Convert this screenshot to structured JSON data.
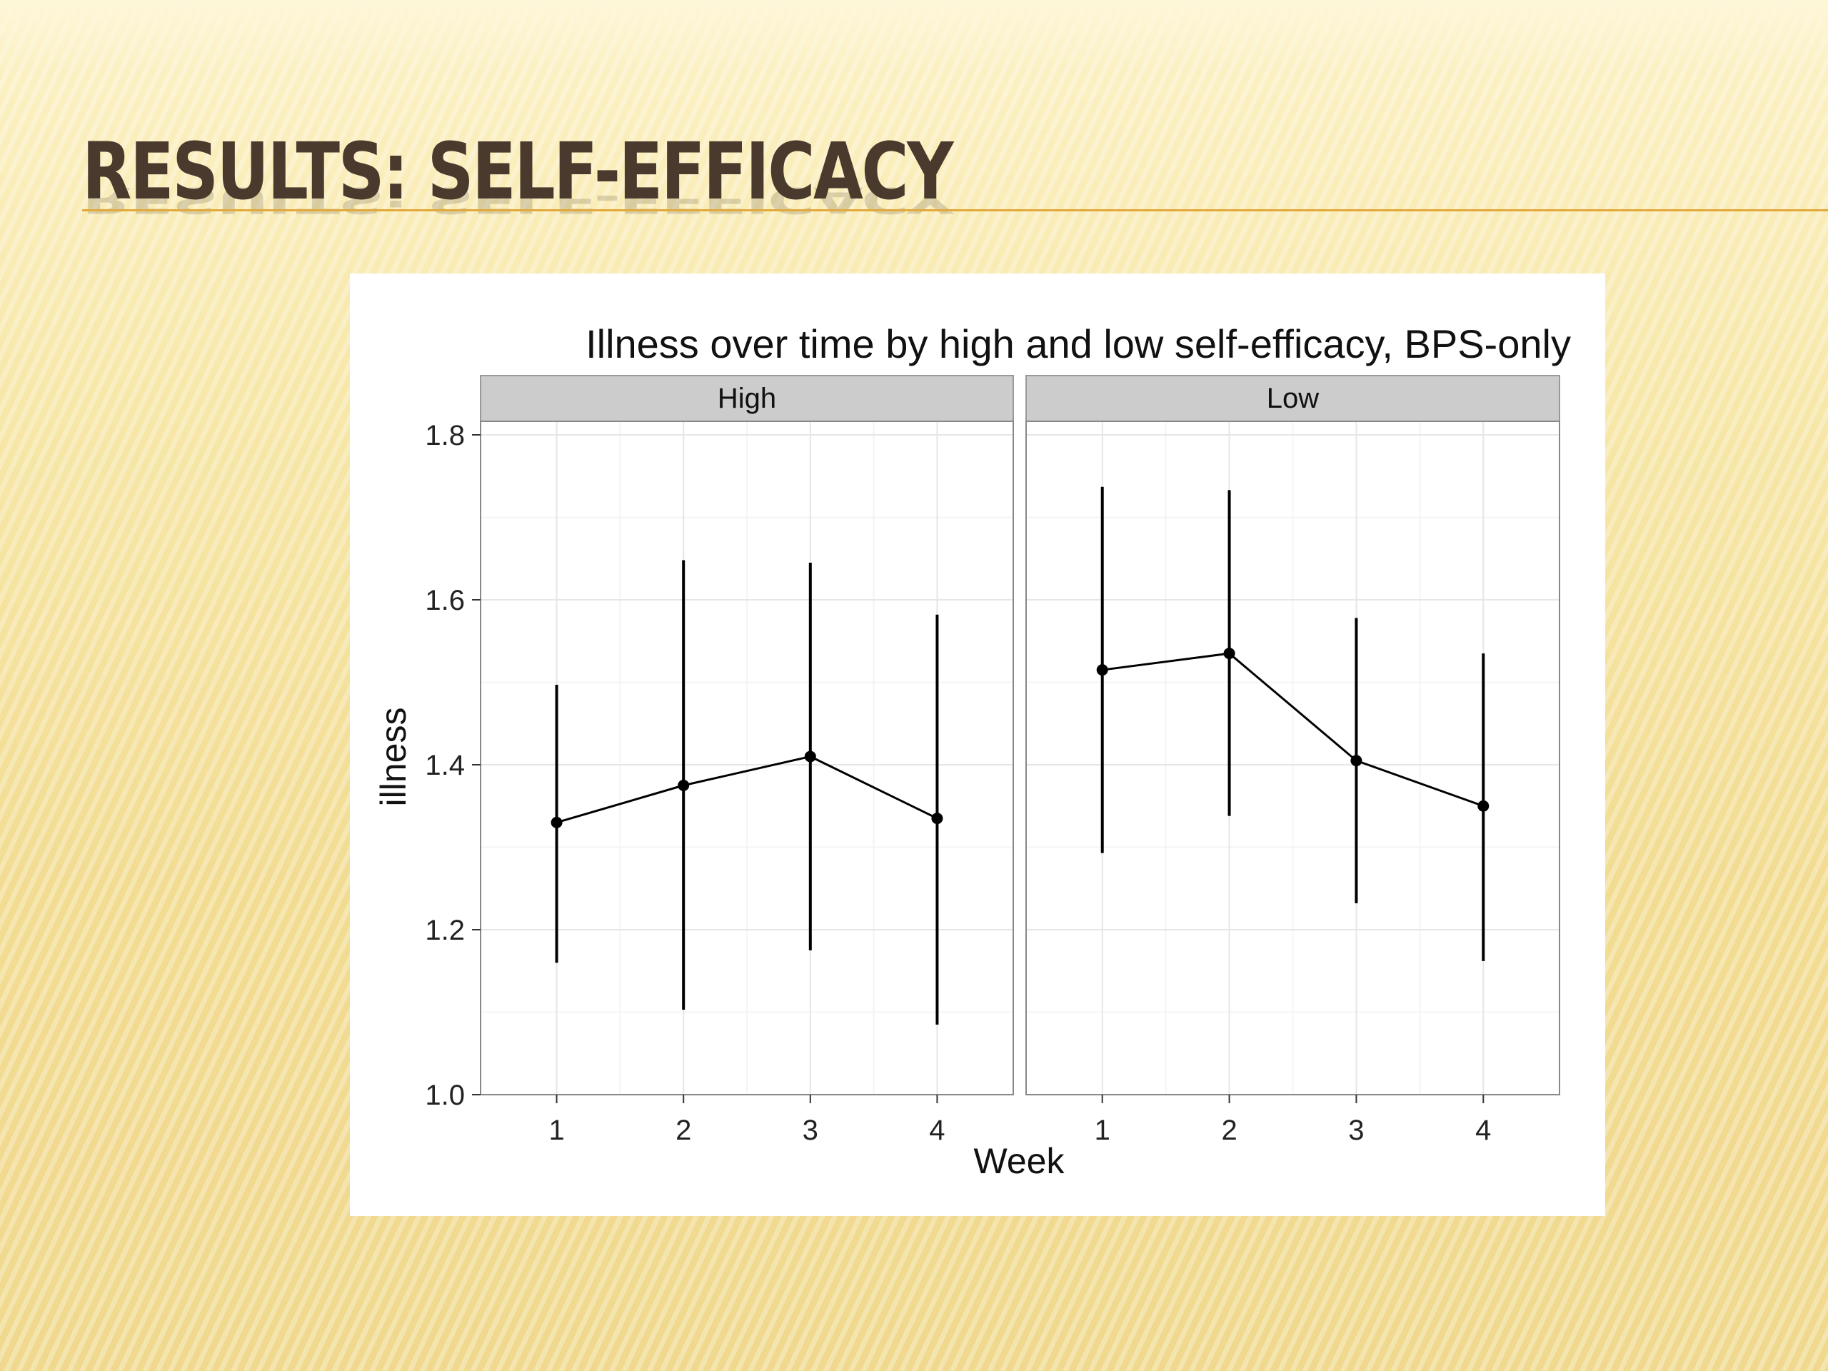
{
  "slide": {
    "title": "RESULTS: SELF-EFFICACY"
  },
  "chart_data": {
    "type": "line",
    "title": "Illness over time by high and low self-efficacy, BPS-only",
    "xlabel": "Week",
    "ylabel": "illness",
    "ylim": [
      1.0,
      1.8
    ],
    "yticks": [
      1.0,
      1.2,
      1.4,
      1.6,
      1.8
    ],
    "x": [
      1,
      2,
      3,
      4
    ],
    "grid": true,
    "facets": [
      {
        "name": "High",
        "values": [
          1.33,
          1.375,
          1.41,
          1.335
        ],
        "lower": [
          1.16,
          1.103,
          1.175,
          1.085
        ],
        "upper": [
          1.497,
          1.648,
          1.645,
          1.582
        ]
      },
      {
        "name": "Low",
        "values": [
          1.515,
          1.535,
          1.405,
          1.35
        ],
        "lower": [
          1.293,
          1.338,
          1.232,
          1.162
        ],
        "upper": [
          1.737,
          1.733,
          1.578,
          1.535
        ]
      }
    ]
  }
}
